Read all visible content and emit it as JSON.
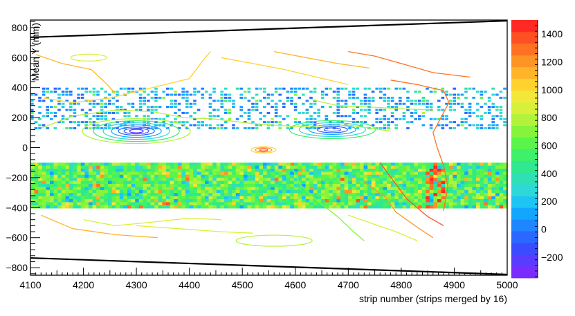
{
  "chart_data": {
    "type": "heatmap",
    "xlabel": "strip number (strips merged by 16)",
    "ylabel": "Mean Y (mm)",
    "xlim": [
      4100,
      5000
    ],
    "ylim": [
      -850,
      850
    ],
    "x_ticks": [
      4100,
      4200,
      4300,
      4400,
      4500,
      4600,
      4700,
      4800,
      4900,
      5000
    ],
    "x_tick_labels": [
      "4100",
      "4200",
      "4300",
      "4400",
      "4500",
      "4600",
      "4700",
      "4800",
      "4900",
      "5000"
    ],
    "y_ticks": [
      -800,
      -600,
      -400,
      -200,
      0,
      200,
      400,
      600,
      800
    ],
    "y_tick_labels": [
      "−800",
      "−600",
      "−400",
      "−200",
      "0",
      "200",
      "400",
      "600",
      "800"
    ],
    "colorbar": {
      "zlim": [
        -350,
        1500
      ],
      "ticks": [
        -200,
        0,
        200,
        400,
        600,
        800,
        1000,
        1200,
        1400
      ],
      "tick_labels": [
        "−200",
        "0",
        "200",
        "400",
        "600",
        "800",
        "1000",
        "1200",
        "1400"
      ],
      "palette": [
        "#7a2cff",
        "#5a3cff",
        "#3a4cff",
        "#2a68ff",
        "#1e86ff",
        "#12a6ff",
        "#1ec4f4",
        "#2fd8d8",
        "#2fe0b4",
        "#2fe890",
        "#3ef06a",
        "#5af44a",
        "#86f43a",
        "#b2f23a",
        "#d8f03a",
        "#f2e83a",
        "#ffd22e",
        "#ffb42a",
        "#ff9426",
        "#ff7224",
        "#ff5024",
        "#ff2a24"
      ]
    },
    "data_bands": [
      {
        "y_range": [
          -400,
          -390
        ],
        "description": "dense"
      },
      {
        "y_range": [
          -390,
          -100
        ],
        "description": "dense, mostly 400-800"
      },
      {
        "y_range": [
          130,
          400
        ],
        "description": "sparse, mostly 0-400"
      }
    ],
    "boundary_lines": [
      {
        "x": [
          4100,
          5000
        ],
        "y": [
          735,
          845
        ]
      },
      {
        "x": [
          4100,
          5000
        ],
        "y": [
          -735,
          -845
        ]
      }
    ],
    "hot_spots": [
      {
        "x": 4300,
        "y": 110,
        "value": -250
      },
      {
        "x": 4670,
        "y": 120,
        "value": -150
      },
      {
        "x": 4540,
        "y": -15,
        "value": 1400
      }
    ]
  }
}
